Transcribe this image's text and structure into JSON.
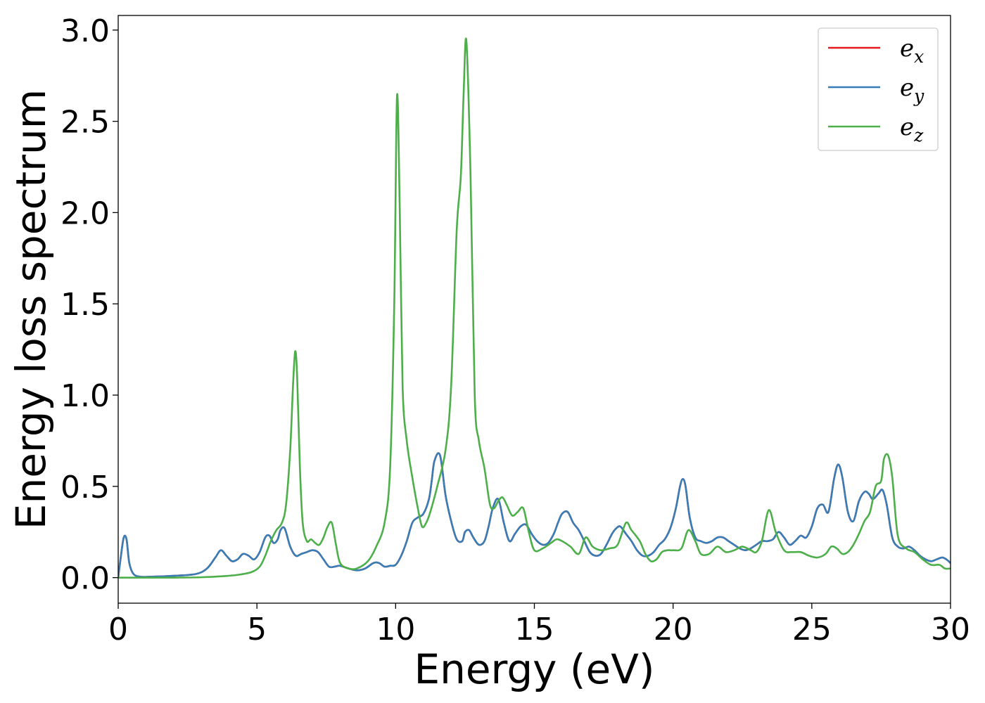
{
  "chart_data": {
    "type": "line",
    "title": "",
    "xlabel": "Energy (eV)",
    "ylabel": "Energy loss spectrum",
    "xlim": [
      0,
      30
    ],
    "ylim": [
      -0.14,
      3.08
    ],
    "xticks": [
      0,
      5,
      10,
      15,
      20,
      25,
      30
    ],
    "yticks": [
      0.0,
      0.5,
      1.0,
      1.5,
      2.0,
      2.5,
      3.0
    ],
    "xtick_labels": [
      "0",
      "5",
      "10",
      "15",
      "20",
      "25",
      "30"
    ],
    "ytick_labels": [
      "0.0",
      "0.5",
      "1.0",
      "1.5",
      "2.0",
      "2.5",
      "3.0"
    ],
    "grid": false,
    "legend_position": "top-right",
    "series": [
      {
        "name": "e_x",
        "legend": {
          "base": "e",
          "sub": "x"
        },
        "color": "#e41a1c",
        "x": [
          0,
          0.1,
          0.2,
          0.3,
          0.4,
          0.55,
          0.8,
          1.2,
          2,
          2.8,
          3.2,
          3.5,
          3.7,
          3.9,
          4.1,
          4.3,
          4.5,
          4.7,
          4.9,
          5.1,
          5.3,
          5.45,
          5.6,
          5.75,
          5.85,
          6.0,
          6.2,
          6.4,
          6.6,
          6.8,
          7.0,
          7.2,
          7.4,
          7.6,
          7.8,
          8.0,
          8.3,
          8.6,
          8.9,
          9.2,
          9.4,
          9.6,
          9.8,
          10.0,
          10.2,
          10.4,
          10.6,
          10.8,
          11.0,
          11.2,
          11.3,
          11.4,
          11.6,
          11.8,
          12.0,
          12.2,
          12.4,
          12.5,
          12.65,
          12.8,
          13.0,
          13.2,
          13.35,
          13.5,
          13.7,
          13.9,
          14.1,
          14.3,
          14.5,
          14.7,
          14.9,
          15.1,
          15.3,
          15.5,
          15.7,
          15.85,
          16.0,
          16.2,
          16.4,
          16.6,
          16.8,
          17.0,
          17.2,
          17.4,
          17.6,
          17.8,
          17.95,
          18.1,
          18.3,
          18.5,
          18.7,
          18.9,
          19.1,
          19.3,
          19.5,
          19.7,
          19.9,
          20.1,
          20.25,
          20.35,
          20.45,
          20.6,
          20.8,
          21.0,
          21.2,
          21.4,
          21.6,
          21.8,
          22.0,
          22.2,
          22.4,
          22.6,
          22.8,
          23.0,
          23.2,
          23.4,
          23.6,
          23.8,
          24.0,
          24.2,
          24.4,
          24.6,
          24.8,
          25.0,
          25.2,
          25.4,
          25.6,
          25.8,
          25.95,
          26.1,
          26.3,
          26.5,
          26.7,
          26.9,
          27.05,
          27.2,
          27.4,
          27.55,
          27.7,
          27.9,
          28.1,
          28.3,
          28.5,
          28.7,
          28.9,
          29.1,
          29.3,
          29.5,
          29.7,
          29.85,
          30.0
        ],
        "y": [
          0.0,
          0.12,
          0.22,
          0.21,
          0.08,
          0.02,
          0.005,
          0.005,
          0.01,
          0.02,
          0.05,
          0.11,
          0.15,
          0.12,
          0.09,
          0.1,
          0.13,
          0.12,
          0.1,
          0.14,
          0.22,
          0.23,
          0.19,
          0.21,
          0.26,
          0.27,
          0.17,
          0.12,
          0.13,
          0.14,
          0.15,
          0.14,
          0.1,
          0.06,
          0.06,
          0.065,
          0.05,
          0.04,
          0.05,
          0.08,
          0.08,
          0.06,
          0.065,
          0.07,
          0.12,
          0.2,
          0.3,
          0.33,
          0.35,
          0.43,
          0.53,
          0.64,
          0.67,
          0.45,
          0.31,
          0.21,
          0.2,
          0.25,
          0.26,
          0.22,
          0.18,
          0.2,
          0.28,
          0.38,
          0.43,
          0.3,
          0.2,
          0.24,
          0.28,
          0.29,
          0.24,
          0.2,
          0.18,
          0.19,
          0.24,
          0.3,
          0.35,
          0.36,
          0.3,
          0.26,
          0.2,
          0.14,
          0.12,
          0.13,
          0.18,
          0.24,
          0.27,
          0.28,
          0.24,
          0.2,
          0.15,
          0.12,
          0.12,
          0.14,
          0.18,
          0.21,
          0.27,
          0.38,
          0.5,
          0.54,
          0.5,
          0.33,
          0.22,
          0.2,
          0.19,
          0.2,
          0.22,
          0.22,
          0.2,
          0.18,
          0.16,
          0.15,
          0.16,
          0.18,
          0.2,
          0.2,
          0.21,
          0.25,
          0.22,
          0.18,
          0.2,
          0.23,
          0.22,
          0.28,
          0.38,
          0.4,
          0.36,
          0.54,
          0.62,
          0.55,
          0.36,
          0.31,
          0.42,
          0.47,
          0.46,
          0.43,
          0.46,
          0.48,
          0.4,
          0.22,
          0.17,
          0.16,
          0.17,
          0.15,
          0.12,
          0.1,
          0.09,
          0.1,
          0.11,
          0.1,
          0.08
        ]
      },
      {
        "name": "e_y",
        "legend": {
          "base": "e",
          "sub": "y"
        },
        "color": "#377eb8",
        "x": [
          0,
          0.1,
          0.2,
          0.3,
          0.4,
          0.55,
          0.8,
          1.2,
          2,
          2.8,
          3.2,
          3.5,
          3.7,
          3.9,
          4.1,
          4.3,
          4.5,
          4.7,
          4.9,
          5.1,
          5.3,
          5.45,
          5.6,
          5.75,
          5.85,
          6.0,
          6.2,
          6.4,
          6.6,
          6.8,
          7.0,
          7.2,
          7.4,
          7.6,
          7.8,
          8.0,
          8.3,
          8.6,
          8.9,
          9.2,
          9.4,
          9.6,
          9.8,
          10.0,
          10.2,
          10.4,
          10.6,
          10.8,
          11.0,
          11.2,
          11.3,
          11.4,
          11.6,
          11.8,
          12.0,
          12.2,
          12.4,
          12.5,
          12.65,
          12.8,
          13.0,
          13.2,
          13.35,
          13.5,
          13.7,
          13.9,
          14.1,
          14.3,
          14.5,
          14.7,
          14.9,
          15.1,
          15.3,
          15.5,
          15.7,
          15.85,
          16.0,
          16.2,
          16.4,
          16.6,
          16.8,
          17.0,
          17.2,
          17.4,
          17.6,
          17.8,
          17.95,
          18.1,
          18.3,
          18.5,
          18.7,
          18.9,
          19.1,
          19.3,
          19.5,
          19.7,
          19.9,
          20.1,
          20.25,
          20.35,
          20.45,
          20.6,
          20.8,
          21.0,
          21.2,
          21.4,
          21.6,
          21.8,
          22.0,
          22.2,
          22.4,
          22.6,
          22.8,
          23.0,
          23.2,
          23.4,
          23.6,
          23.8,
          24.0,
          24.2,
          24.4,
          24.6,
          24.8,
          25.0,
          25.2,
          25.4,
          25.6,
          25.8,
          25.95,
          26.1,
          26.3,
          26.5,
          26.7,
          26.9,
          27.05,
          27.2,
          27.4,
          27.55,
          27.7,
          27.9,
          28.1,
          28.3,
          28.5,
          28.7,
          28.9,
          29.1,
          29.3,
          29.5,
          29.7,
          29.85,
          30.0
        ],
        "y": [
          0.0,
          0.12,
          0.22,
          0.21,
          0.08,
          0.02,
          0.005,
          0.005,
          0.01,
          0.02,
          0.05,
          0.11,
          0.15,
          0.12,
          0.09,
          0.1,
          0.13,
          0.12,
          0.1,
          0.14,
          0.22,
          0.23,
          0.19,
          0.21,
          0.26,
          0.27,
          0.17,
          0.12,
          0.13,
          0.14,
          0.15,
          0.14,
          0.1,
          0.06,
          0.06,
          0.065,
          0.05,
          0.04,
          0.05,
          0.08,
          0.08,
          0.06,
          0.065,
          0.07,
          0.12,
          0.2,
          0.3,
          0.33,
          0.35,
          0.43,
          0.53,
          0.64,
          0.67,
          0.45,
          0.31,
          0.21,
          0.2,
          0.25,
          0.26,
          0.22,
          0.18,
          0.2,
          0.28,
          0.38,
          0.43,
          0.3,
          0.2,
          0.24,
          0.28,
          0.29,
          0.24,
          0.2,
          0.18,
          0.19,
          0.24,
          0.3,
          0.35,
          0.36,
          0.3,
          0.26,
          0.2,
          0.14,
          0.12,
          0.13,
          0.18,
          0.24,
          0.27,
          0.28,
          0.24,
          0.2,
          0.15,
          0.12,
          0.12,
          0.14,
          0.18,
          0.21,
          0.27,
          0.38,
          0.5,
          0.54,
          0.5,
          0.33,
          0.22,
          0.2,
          0.19,
          0.2,
          0.22,
          0.22,
          0.2,
          0.18,
          0.16,
          0.15,
          0.16,
          0.18,
          0.2,
          0.2,
          0.21,
          0.25,
          0.22,
          0.18,
          0.2,
          0.23,
          0.22,
          0.28,
          0.38,
          0.4,
          0.36,
          0.54,
          0.62,
          0.55,
          0.36,
          0.31,
          0.42,
          0.47,
          0.46,
          0.43,
          0.46,
          0.48,
          0.4,
          0.22,
          0.17,
          0.16,
          0.17,
          0.15,
          0.12,
          0.1,
          0.09,
          0.1,
          0.11,
          0.1,
          0.08
        ]
      },
      {
        "name": "e_z",
        "legend": {
          "base": "e",
          "sub": "z"
        },
        "color": "#4daf4a",
        "x": [
          0,
          1,
          2,
          3,
          3.8,
          4.3,
          4.8,
          5.1,
          5.3,
          5.5,
          5.7,
          5.9,
          6.05,
          6.2,
          6.3,
          6.38,
          6.45,
          6.55,
          6.65,
          6.8,
          6.95,
          7.1,
          7.25,
          7.4,
          7.55,
          7.7,
          7.85,
          8.0,
          8.3,
          8.6,
          9.0,
          9.3,
          9.6,
          9.8,
          9.95,
          10.05,
          10.15,
          10.25,
          10.4,
          10.6,
          10.8,
          10.95,
          11.1,
          11.25,
          11.5,
          11.8,
          12.0,
          12.2,
          12.35,
          12.45,
          12.55,
          12.7,
          12.85,
          13.0,
          13.2,
          13.4,
          13.55,
          13.7,
          13.85,
          14.0,
          14.2,
          14.4,
          14.6,
          14.8,
          15.0,
          15.3,
          15.6,
          15.8,
          16.0,
          16.3,
          16.6,
          16.85,
          17.1,
          17.4,
          17.7,
          18.0,
          18.3,
          18.5,
          18.8,
          19.0,
          19.2,
          19.4,
          19.6,
          19.8,
          20.0,
          20.3,
          20.55,
          20.8,
          21.0,
          21.3,
          21.6,
          21.9,
          22.2,
          22.5,
          22.8,
          23.0,
          23.2,
          23.45,
          23.7,
          24.0,
          24.3,
          24.6,
          24.9,
          25.2,
          25.5,
          25.7,
          25.9,
          26.1,
          26.3,
          26.5,
          26.7,
          26.9,
          27.1,
          27.3,
          27.5,
          27.6,
          27.75,
          27.9,
          28.1,
          28.4,
          28.7,
          29.0,
          29.3,
          29.6,
          29.8,
          30.0
        ],
        "y": [
          0.0,
          0.0,
          0.0,
          0.002,
          0.008,
          0.015,
          0.03,
          0.06,
          0.12,
          0.2,
          0.26,
          0.3,
          0.4,
          0.7,
          1.05,
          1.24,
          1.1,
          0.6,
          0.3,
          0.2,
          0.21,
          0.19,
          0.18,
          0.22,
          0.28,
          0.3,
          0.18,
          0.08,
          0.05,
          0.05,
          0.09,
          0.17,
          0.3,
          0.6,
          1.5,
          2.64,
          2.0,
          1.05,
          0.75,
          0.55,
          0.38,
          0.28,
          0.3,
          0.36,
          0.5,
          0.7,
          1.05,
          1.9,
          2.2,
          2.65,
          2.94,
          2.2,
          1.0,
          0.75,
          0.6,
          0.4,
          0.38,
          0.42,
          0.44,
          0.4,
          0.34,
          0.36,
          0.38,
          0.25,
          0.15,
          0.16,
          0.19,
          0.21,
          0.2,
          0.17,
          0.13,
          0.22,
          0.17,
          0.15,
          0.16,
          0.18,
          0.3,
          0.26,
          0.2,
          0.13,
          0.09,
          0.1,
          0.14,
          0.15,
          0.15,
          0.16,
          0.26,
          0.2,
          0.13,
          0.13,
          0.17,
          0.14,
          0.15,
          0.17,
          0.15,
          0.14,
          0.2,
          0.37,
          0.25,
          0.15,
          0.14,
          0.14,
          0.12,
          0.11,
          0.13,
          0.17,
          0.16,
          0.13,
          0.14,
          0.18,
          0.24,
          0.31,
          0.36,
          0.5,
          0.53,
          0.65,
          0.67,
          0.55,
          0.23,
          0.16,
          0.14,
          0.1,
          0.07,
          0.07,
          0.05,
          0.05
        ]
      }
    ]
  }
}
